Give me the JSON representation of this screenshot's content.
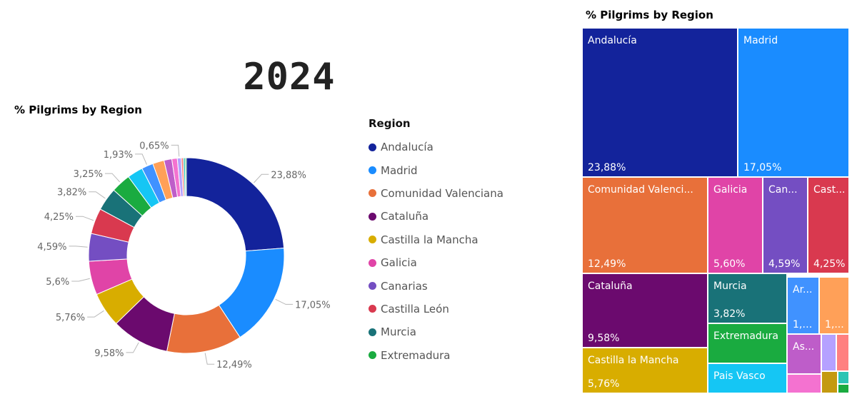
{
  "year": "2024",
  "chart_data": [
    {
      "type": "pie",
      "style": "donut",
      "title": "% Pilgrims by Region",
      "legend_title": "Region",
      "legend_position": "right",
      "slices": [
        {
          "name": "Andalucía",
          "value": 23.88,
          "label": "23,88%",
          "color": "#13239B"
        },
        {
          "name": "Madrid",
          "value": 17.05,
          "label": "17,05%",
          "color": "#1A8CFF"
        },
        {
          "name": "Comunidad Valenciana",
          "value": 12.49,
          "label": "12,49%",
          "color": "#E8703A"
        },
        {
          "name": "Cataluña",
          "value": 9.58,
          "label": "9,58%",
          "color": "#6B0A6E"
        },
        {
          "name": "Castilla la Mancha",
          "value": 5.76,
          "label": "5,76%",
          "color": "#D8AD00"
        },
        {
          "name": "Galicia",
          "value": 5.6,
          "label": "5,6%",
          "color": "#E044A7"
        },
        {
          "name": "Canarias",
          "value": 4.59,
          "label": "4,59%",
          "color": "#744EC2"
        },
        {
          "name": "Castilla León",
          "value": 4.25,
          "label": "4,25%",
          "color": "#D9394F"
        },
        {
          "name": "Murcia",
          "value": 3.82,
          "label": "3,82%",
          "color": "#197278"
        },
        {
          "name": "Extremadura",
          "value": 3.25,
          "label": "3,25%",
          "color": "#1AAB40"
        },
        {
          "name": "",
          "value": 2.6,
          "label": "",
          "color": "#15C6F4"
        },
        {
          "name": "",
          "value": 1.93,
          "label": "1,93%",
          "color": "#4092FF"
        },
        {
          "name": "",
          "value": 1.9,
          "label": "",
          "color": "#FFA058"
        },
        {
          "name": "",
          "value": 1.3,
          "label": "",
          "color": "#BE5DC9"
        },
        {
          "name": "",
          "value": 0.9,
          "label": "",
          "color": "#F472D0"
        },
        {
          "name": "",
          "value": 0.65,
          "label": "0,65%",
          "color": "#B5A1FF"
        },
        {
          "name": "",
          "value": 0.35,
          "label": "",
          "color": "#FF8080"
        },
        {
          "name": "",
          "value": 0.3,
          "label": "",
          "color": "#2CC4B4"
        },
        {
          "name": "",
          "value": 0.2,
          "label": "",
          "color": "#1AAB40"
        }
      ]
    },
    {
      "type": "treemap",
      "title": "% Pilgrims by Region",
      "tiles": [
        {
          "name": "Andalucía",
          "label": "Andalucía",
          "value": 23.88,
          "value_label": "23,88%",
          "color": "#13239B"
        },
        {
          "name": "Madrid",
          "label": "Madrid",
          "value": 17.05,
          "value_label": "17,05%",
          "color": "#1A8CFF"
        },
        {
          "name": "Comunidad Valenciana",
          "label": "Comunidad Valenci...",
          "value": 12.49,
          "value_label": "12,49%",
          "color": "#E8703A"
        },
        {
          "name": "Galicia",
          "label": "Galicia",
          "value": 5.6,
          "value_label": "5,60%",
          "color": "#E044A7"
        },
        {
          "name": "Canarias",
          "label": "Can...",
          "value": 4.59,
          "value_label": "4,59%",
          "color": "#744EC2"
        },
        {
          "name": "Castilla León",
          "label": "Cast...",
          "value": 4.25,
          "value_label": "4,25%",
          "color": "#D9394F"
        },
        {
          "name": "Cataluña",
          "label": "Cataluña",
          "value": 9.58,
          "value_label": "9,58%",
          "color": "#6B0A6E"
        },
        {
          "name": "Murcia",
          "label": "Murcia",
          "value": 3.82,
          "value_label": "3,82%",
          "color": "#197278"
        },
        {
          "name": "Ar...",
          "label": "Ar...",
          "value": 1.93,
          "value_label": "1,9...",
          "color": "#4092FF"
        },
        {
          "name": "",
          "label": "",
          "value": 1.9,
          "value_label": "1,...",
          "color": "#FFA058"
        },
        {
          "name": "Extremadura",
          "label": "Extremadura",
          "value": 3.25,
          "value_label": "",
          "color": "#1AAB40"
        },
        {
          "name": "As...",
          "label": "As...",
          "value": 1.3,
          "value_label": "",
          "color": "#BE5DC9"
        },
        {
          "name": "",
          "label": "",
          "value": 0.65,
          "value_label": "",
          "color": "#B5A1FF"
        },
        {
          "name": "",
          "label": "",
          "value": 0.35,
          "value_label": "",
          "color": "#FF8080"
        },
        {
          "name": "Castilla la Mancha",
          "label": "Castilla la Mancha",
          "value": 5.76,
          "value_label": "5,76%",
          "color": "#D8AD00"
        },
        {
          "name": "Pais Vasco",
          "label": "Pais Vasco",
          "value": 2.6,
          "value_label": "",
          "color": "#15C6F4"
        },
        {
          "name": "",
          "label": "",
          "value": 0.9,
          "value_label": "",
          "color": "#F472D0"
        },
        {
          "name": "",
          "label": "",
          "value": 0.5,
          "value_label": "",
          "color": "#C49A10"
        },
        {
          "name": "",
          "label": "",
          "value": 0.3,
          "value_label": "",
          "color": "#2CC4B4"
        },
        {
          "name": "",
          "label": "",
          "value": 0.2,
          "value_label": "",
          "color": "#1AAB40"
        }
      ]
    }
  ]
}
